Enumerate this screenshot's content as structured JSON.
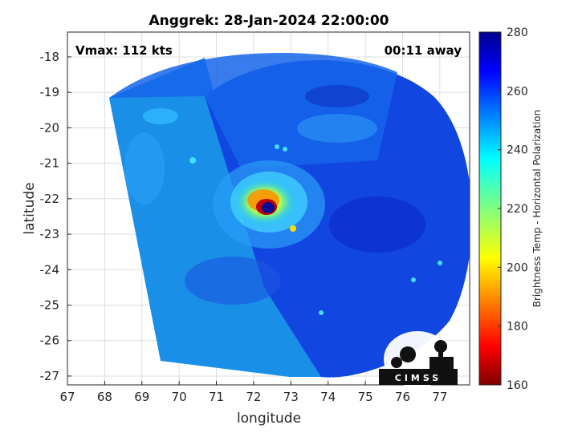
{
  "chart_data": {
    "type": "heatmap",
    "title": "Anggrek: 28-Jan-2024 22:00:00",
    "xlabel": "longitude",
    "ylabel": "latitude",
    "xlim": [
      67,
      77.8
    ],
    "ylim": [
      -27.25,
      -17.3
    ],
    "x_ticks": [
      "67",
      "68",
      "69",
      "70",
      "71",
      "72",
      "73",
      "74",
      "75",
      "76",
      "77"
    ],
    "y_ticks": [
      "-18",
      "-19",
      "-20",
      "-21",
      "-22",
      "-23",
      "-24",
      "-25",
      "-26",
      "-27"
    ],
    "grid": true,
    "annotations": {
      "vmax": "Vmax: 112 kts",
      "away": "00:11 away"
    },
    "storm_center": {
      "lon": 72.4,
      "lat": -22.25
    },
    "swath_radius_deg": 5.5,
    "colorbar": {
      "label": "Brightness Temp - Horizontal Polarization",
      "range": [
        160,
        280
      ],
      "ticks": [
        "160",
        "180",
        "200",
        "220",
        "240",
        "260",
        "280"
      ],
      "colormap": "jet"
    },
    "logo_text": "CIMSS"
  }
}
